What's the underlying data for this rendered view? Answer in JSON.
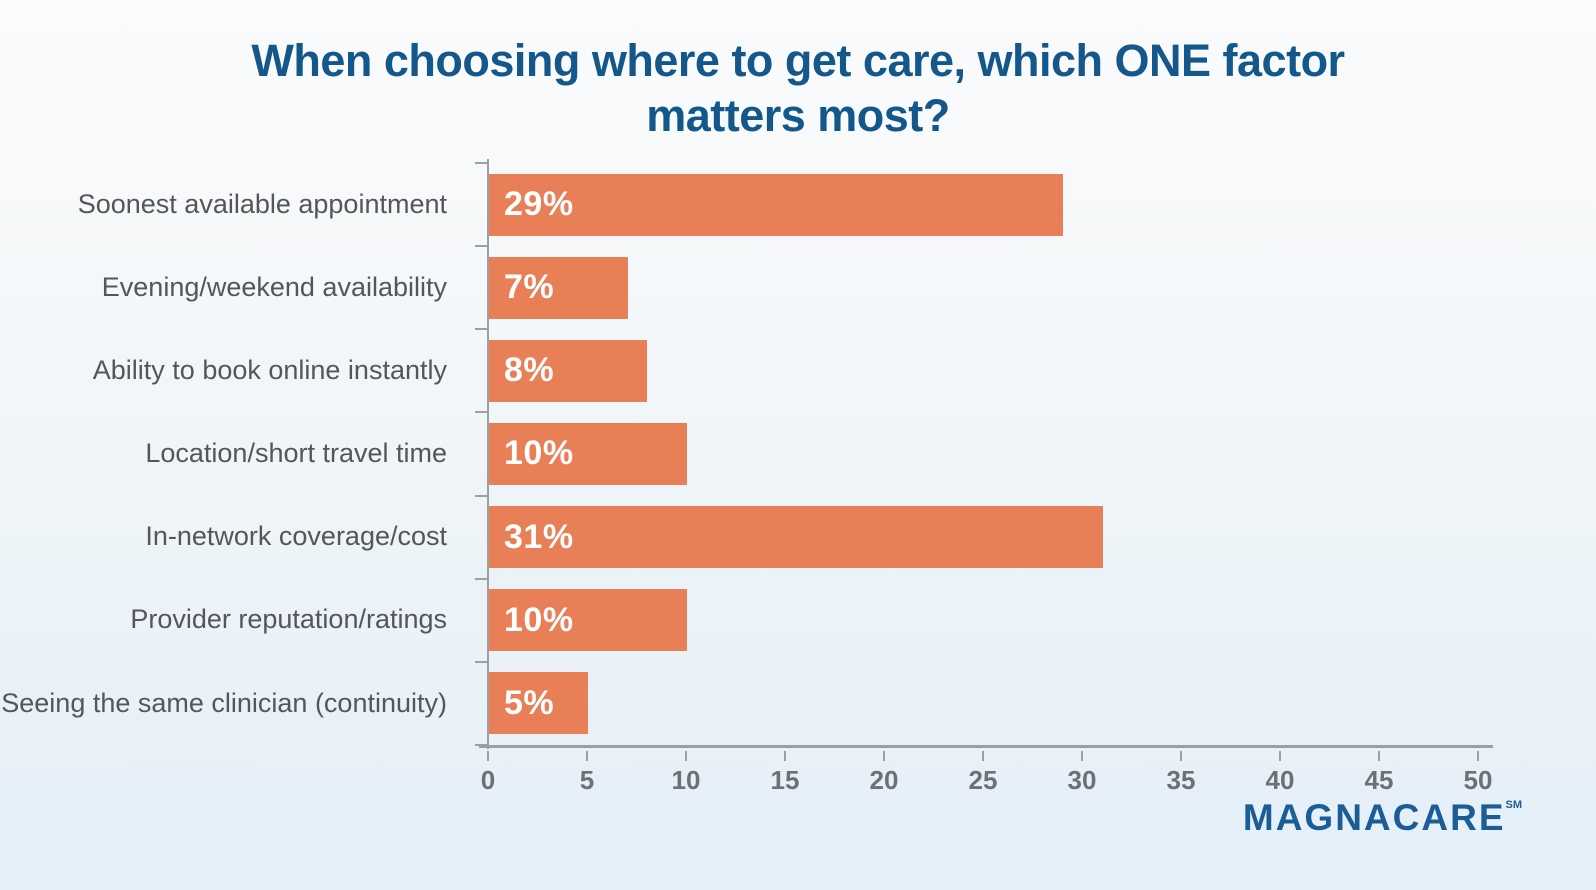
{
  "chart_data": {
    "type": "bar",
    "orientation": "horizontal",
    "title": "When choosing where to get care, which ONE factor matters most?",
    "categories": [
      "Soonest available appointment",
      "Evening/weekend availability",
      "Ability to book online instantly",
      "Location/short travel time",
      "In-network coverage/cost",
      "Provider reputation/ratings",
      "Seeing the same clinician (continuity)"
    ],
    "values": [
      29,
      7,
      8,
      10,
      31,
      10,
      5
    ],
    "value_labels": [
      "29%",
      "7%",
      "8%",
      "10%",
      "31%",
      "10%",
      "5%"
    ],
    "xlabel": "",
    "ylabel": "",
    "xlim": [
      0,
      50
    ],
    "x_ticks": [
      0,
      5,
      10,
      15,
      20,
      25,
      30,
      35,
      40,
      45,
      50
    ],
    "grid": false,
    "legend": false,
    "bar_color": "#E87F57",
    "value_label_color": "#FFFFFF",
    "title_color": "#14578B",
    "axis_color": "#9AA0A3",
    "category_label_color": "#54565A",
    "tick_label_color": "#6D7175"
  },
  "branding": {
    "logo_text": "MAGNACARE",
    "logo_superscript": "SM",
    "logo_color": "#1B5E97"
  }
}
